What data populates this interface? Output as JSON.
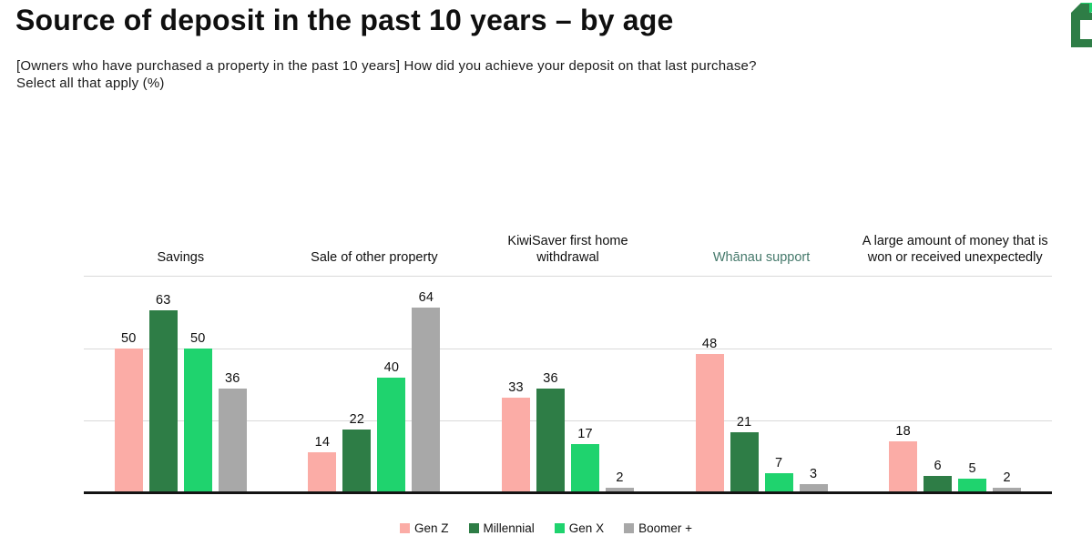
{
  "header": {
    "title": "Source of deposit in the past 10 years – by age",
    "subtitle_line1": "[Owners who have purchased a property in the past 10 years] How did you achieve your deposit on that last purchase?",
    "subtitle_line2": "Select all that apply (%)"
  },
  "logo": {
    "description": "partially cropped green house logo fragment",
    "dark_green": "#2E7D46",
    "light_green": "#1FD36E"
  },
  "chart_data": {
    "type": "bar",
    "title": "Source of deposit in the past 10 years – by age",
    "categories": [
      "Savings",
      "Sale of other property",
      "KiwiSaver first home withdrawal",
      "Whānau support",
      "A large amount of money that is won or received unexpectedly"
    ],
    "category_label_colors": [
      "#0f0f0f",
      "#0f0f0f",
      "#0f0f0f",
      "#45796B",
      "#0f0f0f"
    ],
    "series": [
      {
        "name": "Gen Z",
        "color": "#FBACA6",
        "values": [
          50,
          14,
          33,
          48,
          18
        ]
      },
      {
        "name": "Millennial",
        "color": "#2E7D46",
        "values": [
          63,
          22,
          36,
          21,
          6
        ]
      },
      {
        "name": "Gen X",
        "color": "#1FD36E",
        "values": [
          50,
          40,
          17,
          7,
          5
        ]
      },
      {
        "name": "Boomer +",
        "color": "#A8A8A8",
        "values": [
          36,
          64,
          2,
          3,
          2
        ]
      }
    ],
    "ylabel": "",
    "xlabel": "",
    "ylim": [
      0,
      75
    ],
    "gridlines": [
      25,
      50,
      75
    ],
    "grid": "horizontal, no tick labels",
    "value_labels": true,
    "legend_position": "bottom-center",
    "gridline_color": "#d9d9d9",
    "axis_line_color": "#141414"
  }
}
